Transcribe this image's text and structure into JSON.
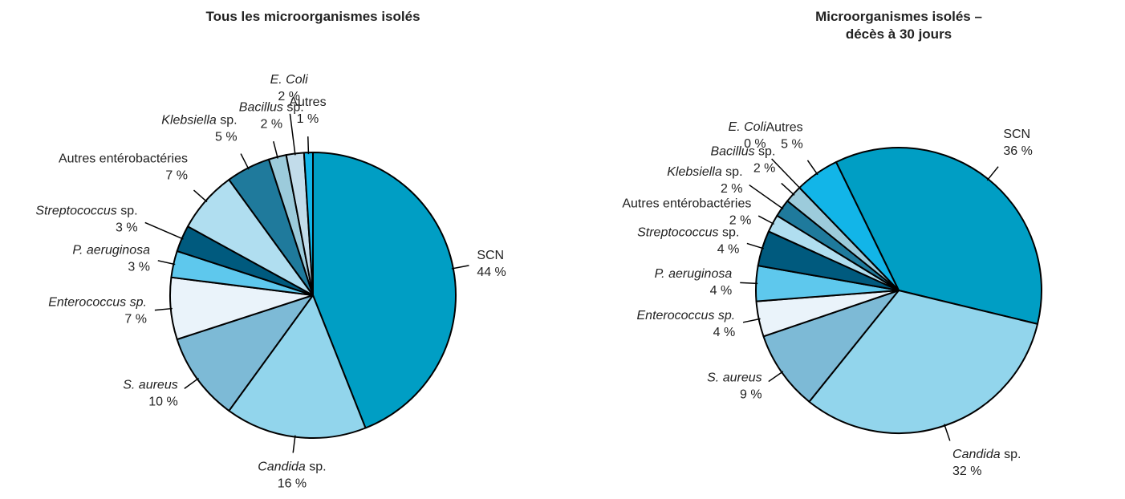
{
  "chart_data": [
    {
      "type": "pie",
      "title": [
        "Tous les microorganismes isolés"
      ],
      "categories": [
        "SCN",
        "Candida sp.",
        "S. aureus",
        "Enterococcus sp.",
        "P. aeruginosa",
        "Streptococcus sp.",
        "Autres entérobactéries",
        "Klebsiella sp.",
        "Bacillus sp.",
        "E. Coli",
        "Autres"
      ],
      "values": [
        44,
        16,
        10,
        7,
        3,
        3,
        7,
        5,
        2,
        2,
        1
      ],
      "value_labels": [
        "44 %",
        "16 %",
        "10 %",
        "7 %",
        "3 %",
        "3 %",
        "7 %",
        "5 %",
        "2 %",
        "2 %",
        "1 %"
      ],
      "colors": [
        "#009ec4",
        "#92d5ec",
        "#7dbad6",
        "#eaf3fa",
        "#5ec8ed",
        "#005a7e",
        "#b0def0",
        "#1f7a9c",
        "#9ccbdb",
        "#c2dcea",
        "#12b5e8"
      ]
    },
    {
      "type": "pie",
      "title": [
        "Microorganismes isolés –",
        "décès à 30 jours"
      ],
      "categories": [
        "SCN",
        "Candida sp.",
        "S. aureus",
        "Enterococcus sp.",
        "P. aeruginosa",
        "Streptococcus sp.",
        "Autres entérobactéries",
        "Klebsiella sp.",
        "Bacillus sp.",
        "E. Coli",
        "Autres"
      ],
      "values": [
        36,
        32,
        9,
        4,
        4,
        4,
        2,
        2,
        2,
        0,
        5
      ],
      "value_labels": [
        "36 %",
        "32 %",
        "9 %",
        "4 %",
        "4 %",
        "4 %",
        "2 %",
        "2 %",
        "2 %",
        "0 %",
        "5 %"
      ],
      "colors": [
        "#009ec4",
        "#92d5ec",
        "#7dbad6",
        "#eaf3fa",
        "#5ec8ed",
        "#005a7e",
        "#b0def0",
        "#1f7a9c",
        "#9ccbdb",
        "#c2dcea",
        "#12b5e8"
      ]
    }
  ]
}
